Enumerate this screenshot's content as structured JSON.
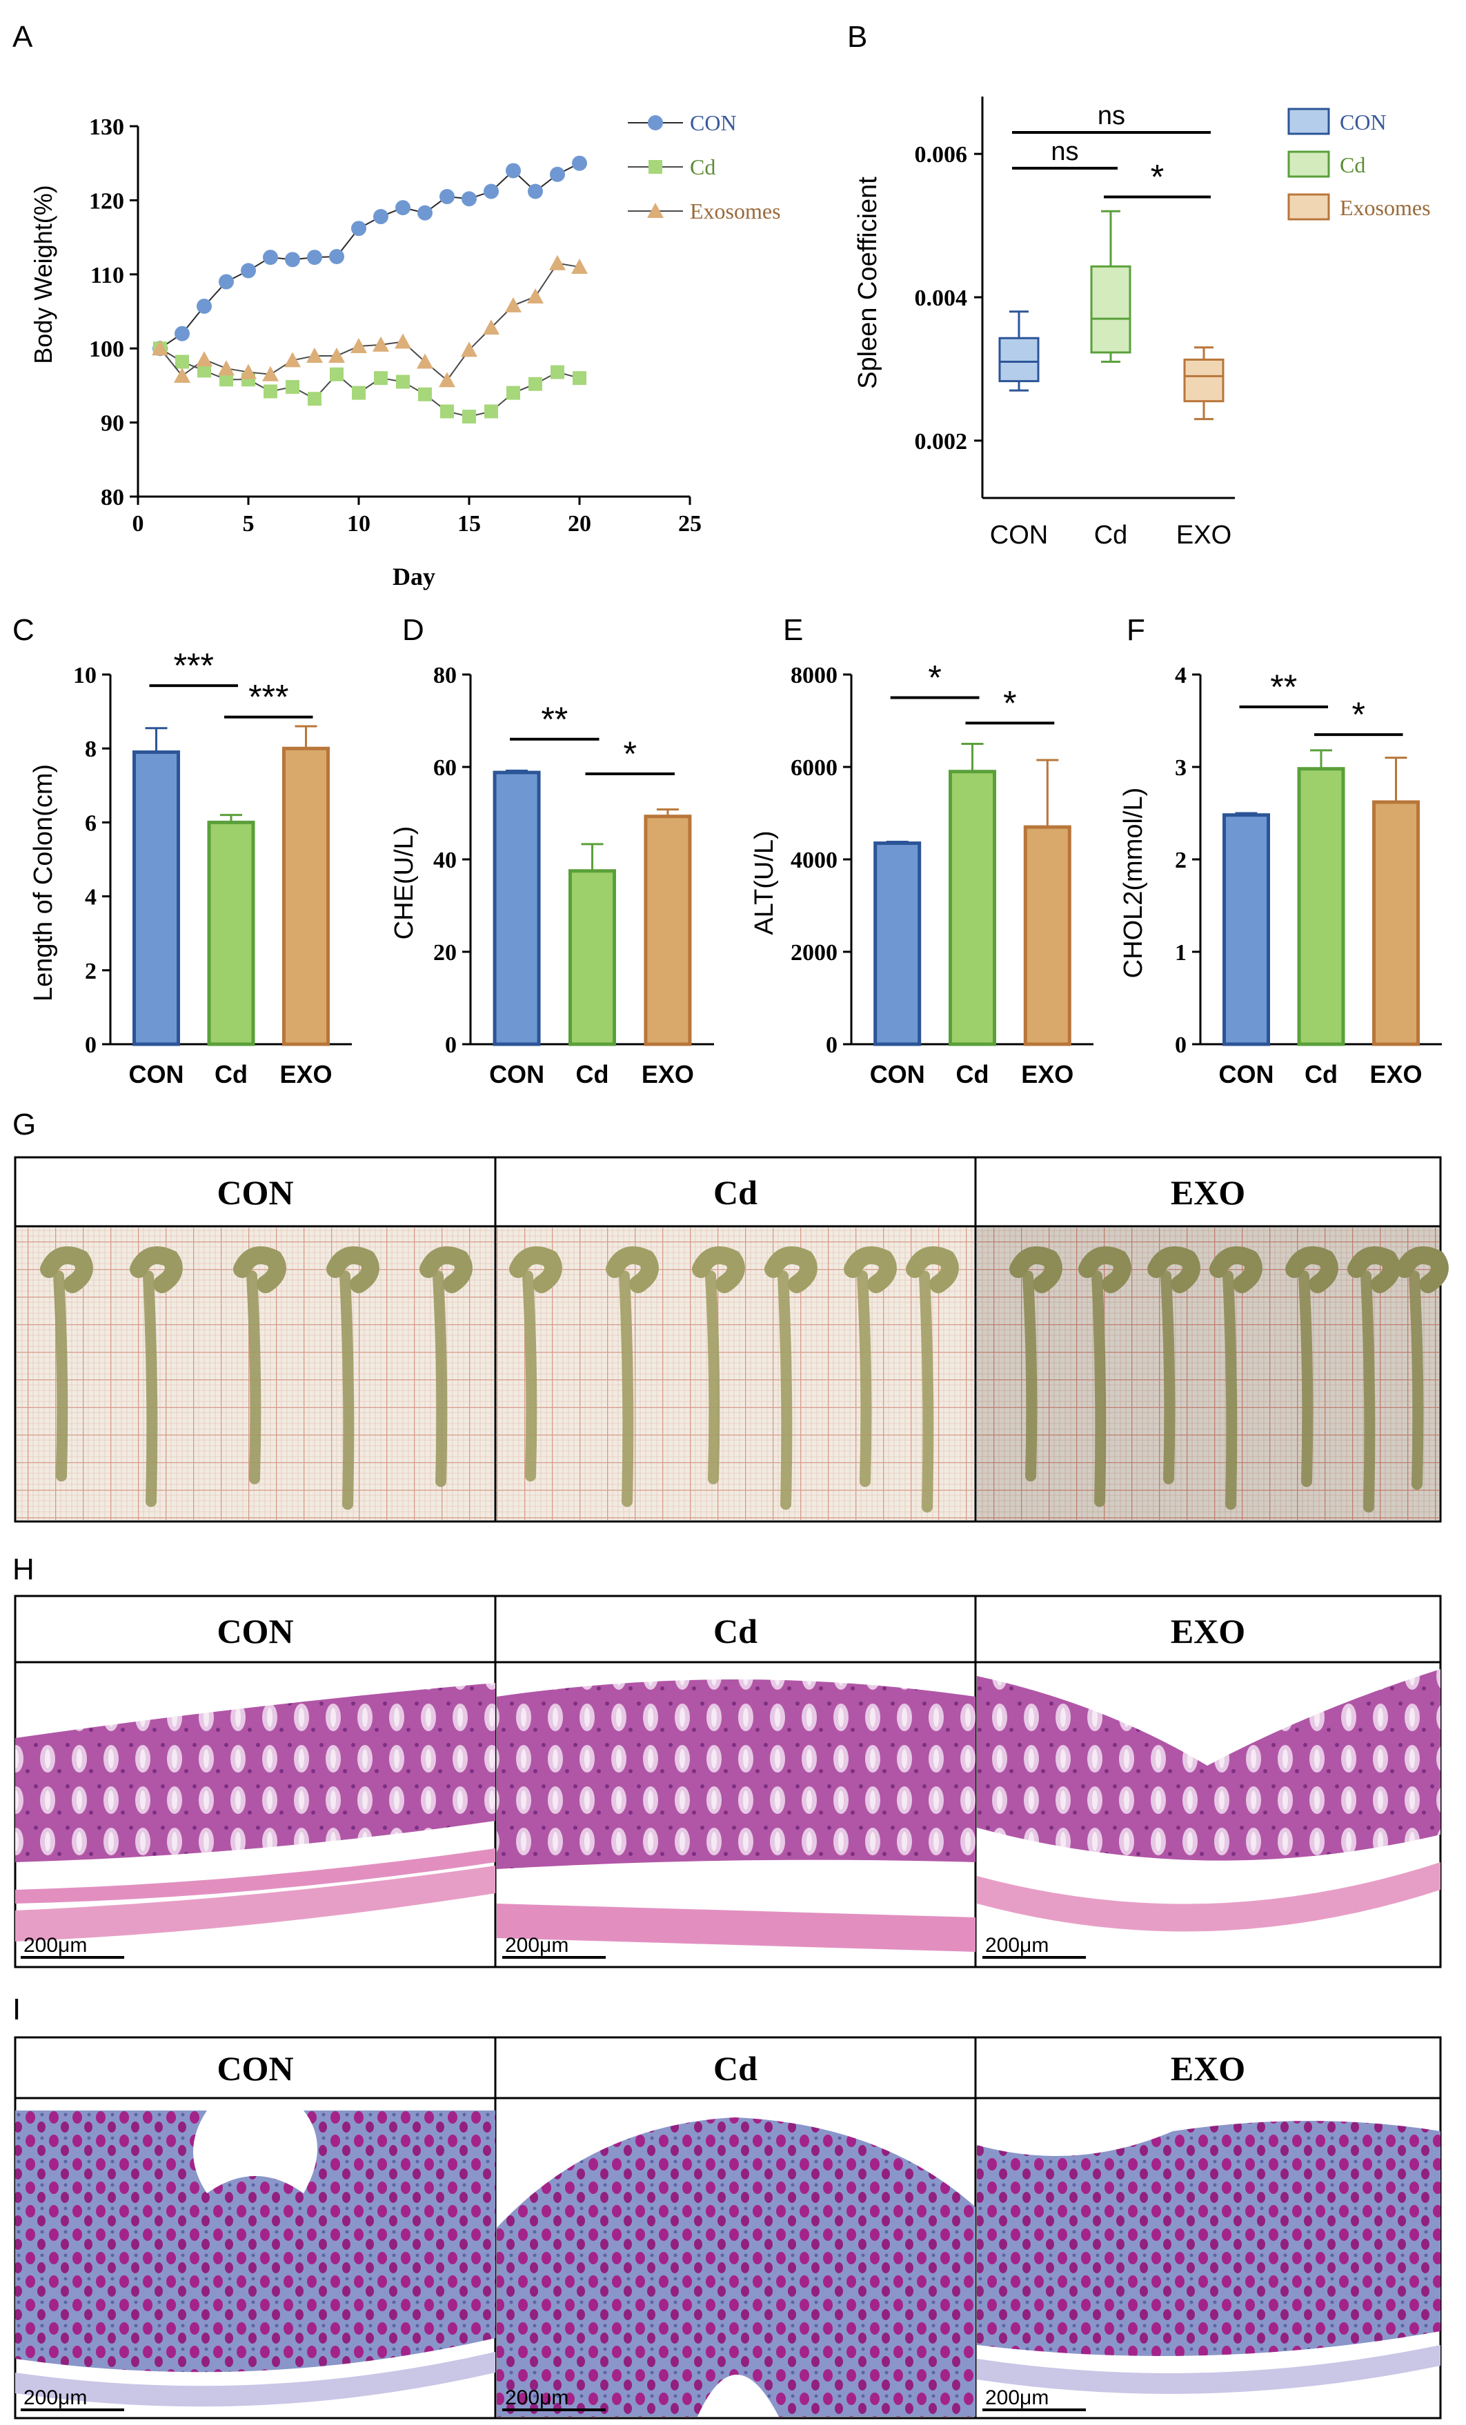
{
  "panels": {
    "A": "A",
    "B": "B",
    "C": "C",
    "D": "D",
    "E": "E",
    "F": "F",
    "G": "G",
    "H": "H",
    "I": "I"
  },
  "colors": {
    "con": "#6f98d2",
    "cd": "#9dcf6a",
    "exo": "#d8a96a",
    "con_line": "#2c5597",
    "cd_line": "#5aa03a",
    "exo_line": "#b8763a",
    "con_fill": "#b4cdeb",
    "cd_fill": "#d3ebbd",
    "exo_fill": "#f1d6b4",
    "con_marker": "#6f98d2",
    "cd_marker": "#a6d77a",
    "exo_marker": "#dcae78"
  },
  "chart_data": [
    {
      "panel": "A",
      "type": "line",
      "xlabel": "Day",
      "ylabel": "Body Weight(%)",
      "xlim": [
        0,
        25
      ],
      "ylim": [
        80,
        130
      ],
      "xticks": [
        0,
        5,
        10,
        15,
        20,
        25
      ],
      "yticks": [
        80,
        90,
        100,
        110,
        120,
        130
      ],
      "legend_position": "top-right",
      "x": [
        1,
        2,
        3,
        4,
        5,
        6,
        7,
        8,
        9,
        10,
        11,
        12,
        13,
        14,
        15,
        16,
        17,
        18,
        19,
        20
      ],
      "series": [
        {
          "name": "CON",
          "marker": "circle",
          "values": [
            100,
            102,
            105.7,
            109,
            110.5,
            112.3,
            112,
            112.3,
            112.4,
            116.2,
            117.8,
            119,
            118.3,
            120.5,
            120.2,
            121.2,
            124,
            121.2,
            123.5,
            125
          ]
        },
        {
          "name": "Cd",
          "marker": "square",
          "values": [
            100,
            98.2,
            97,
            95.8,
            95.8,
            94.2,
            94.8,
            93.2,
            96.5,
            94,
            96,
            95.5,
            93.8,
            91.5,
            90.8,
            91.5,
            94,
            95.2,
            96.8,
            96
          ]
        },
        {
          "name": "Exosomes",
          "marker": "triangle",
          "values": [
            100,
            96.3,
            98.5,
            97.3,
            96.8,
            96.5,
            98.4,
            99,
            99,
            100.3,
            100.5,
            100.9,
            98.2,
            95.7,
            99.8,
            102.8,
            105.8,
            107,
            111.5,
            111
          ]
        }
      ]
    },
    {
      "panel": "B",
      "type": "box",
      "ylabel": "Spleen Coefficient",
      "ylim": [
        0.0012,
        0.0068
      ],
      "yticks": [
        "0.002",
        "0.004",
        "0.006"
      ],
      "categories": [
        "CON",
        "Cd",
        "EXO"
      ],
      "legend_position": "top-right",
      "legend": [
        "CON",
        "Cd",
        "Exosomes"
      ],
      "boxes": [
        {
          "min": 0.0027,
          "q1": 0.00283,
          "median": 0.0031,
          "q3": 0.00343,
          "max": 0.0038
        },
        {
          "min": 0.0031,
          "q1": 0.00323,
          "median": 0.0037,
          "q3": 0.00443,
          "max": 0.0052
        },
        {
          "min": 0.0023,
          "q1": 0.00255,
          "median": 0.0029,
          "q3": 0.00313,
          "max": 0.0033
        }
      ],
      "significance": [
        {
          "from": 0,
          "to": 2,
          "label": "ns",
          "level": 0.0063
        },
        {
          "from": 0,
          "to": 1,
          "label": "ns",
          "level": 0.0058
        },
        {
          "from": 1,
          "to": 2,
          "label": "*",
          "level": 0.0054
        }
      ]
    },
    {
      "panel": "C",
      "type": "bar",
      "ylabel": "Length of Colon(cm)",
      "ylim": [
        0,
        10
      ],
      "yticks": [
        0,
        2,
        4,
        6,
        8,
        10
      ],
      "categories": [
        "CON",
        "Cd",
        "EXO"
      ],
      "values": [
        7.9,
        6.0,
        8.0
      ],
      "errors": [
        0.65,
        0.2,
        0.6
      ],
      "significance": [
        {
          "from": 0,
          "to": 1,
          "label": "***",
          "level": 9.7
        },
        {
          "from": 1,
          "to": 2,
          "label": "***",
          "level": 8.85
        }
      ]
    },
    {
      "panel": "D",
      "type": "bar",
      "ylabel": "CHE(U/L)",
      "ylim": [
        0,
        80
      ],
      "yticks": [
        0,
        20,
        40,
        60,
        80
      ],
      "categories": [
        "CON",
        "Cd",
        "EXO"
      ],
      "values": [
        58.8,
        37.5,
        49.3
      ],
      "errors": [
        0.4,
        5.8,
        1.5
      ],
      "significance": [
        {
          "from": 0,
          "to": 1,
          "label": "**",
          "level": 66
        },
        {
          "from": 1,
          "to": 2,
          "label": "*",
          "level": 58.5
        }
      ]
    },
    {
      "panel": "E",
      "type": "bar",
      "ylabel": "ALT(U/L)",
      "ylim": [
        0,
        8000
      ],
      "yticks": [
        0,
        2000,
        4000,
        6000,
        8000
      ],
      "categories": [
        "CON",
        "Cd",
        "EXO"
      ],
      "values": [
        4350,
        5900,
        4700
      ],
      "errors": [
        30,
        600,
        1450
      ],
      "significance": [
        {
          "from": 0,
          "to": 1,
          "label": "*",
          "level": 7500
        },
        {
          "from": 1,
          "to": 2,
          "label": "*",
          "level": 6950
        }
      ]
    },
    {
      "panel": "F",
      "type": "bar",
      "ylabel": "CHOL2(mmol/L)",
      "ylim": [
        0,
        4
      ],
      "yticks": [
        0,
        1,
        2,
        3,
        4
      ],
      "categories": [
        "CON",
        "Cd",
        "EXO"
      ],
      "values": [
        2.48,
        2.98,
        2.62
      ],
      "errors": [
        0.02,
        0.2,
        0.48
      ],
      "significance": [
        {
          "from": 0,
          "to": 1,
          "label": "**",
          "level": 3.65
        },
        {
          "from": 1,
          "to": 2,
          "label": "*",
          "level": 3.35
        }
      ]
    }
  ],
  "photo_rows": [
    {
      "panel": "G",
      "titles": [
        "CON",
        "Cd",
        "EXO"
      ]
    },
    {
      "panel": "H",
      "titles": [
        "CON",
        "Cd",
        "EXO"
      ],
      "scale_bar": "200μm"
    },
    {
      "panel": "I",
      "titles": [
        "CON",
        "Cd",
        "EXO"
      ],
      "scale_bar": "200μm"
    }
  ]
}
